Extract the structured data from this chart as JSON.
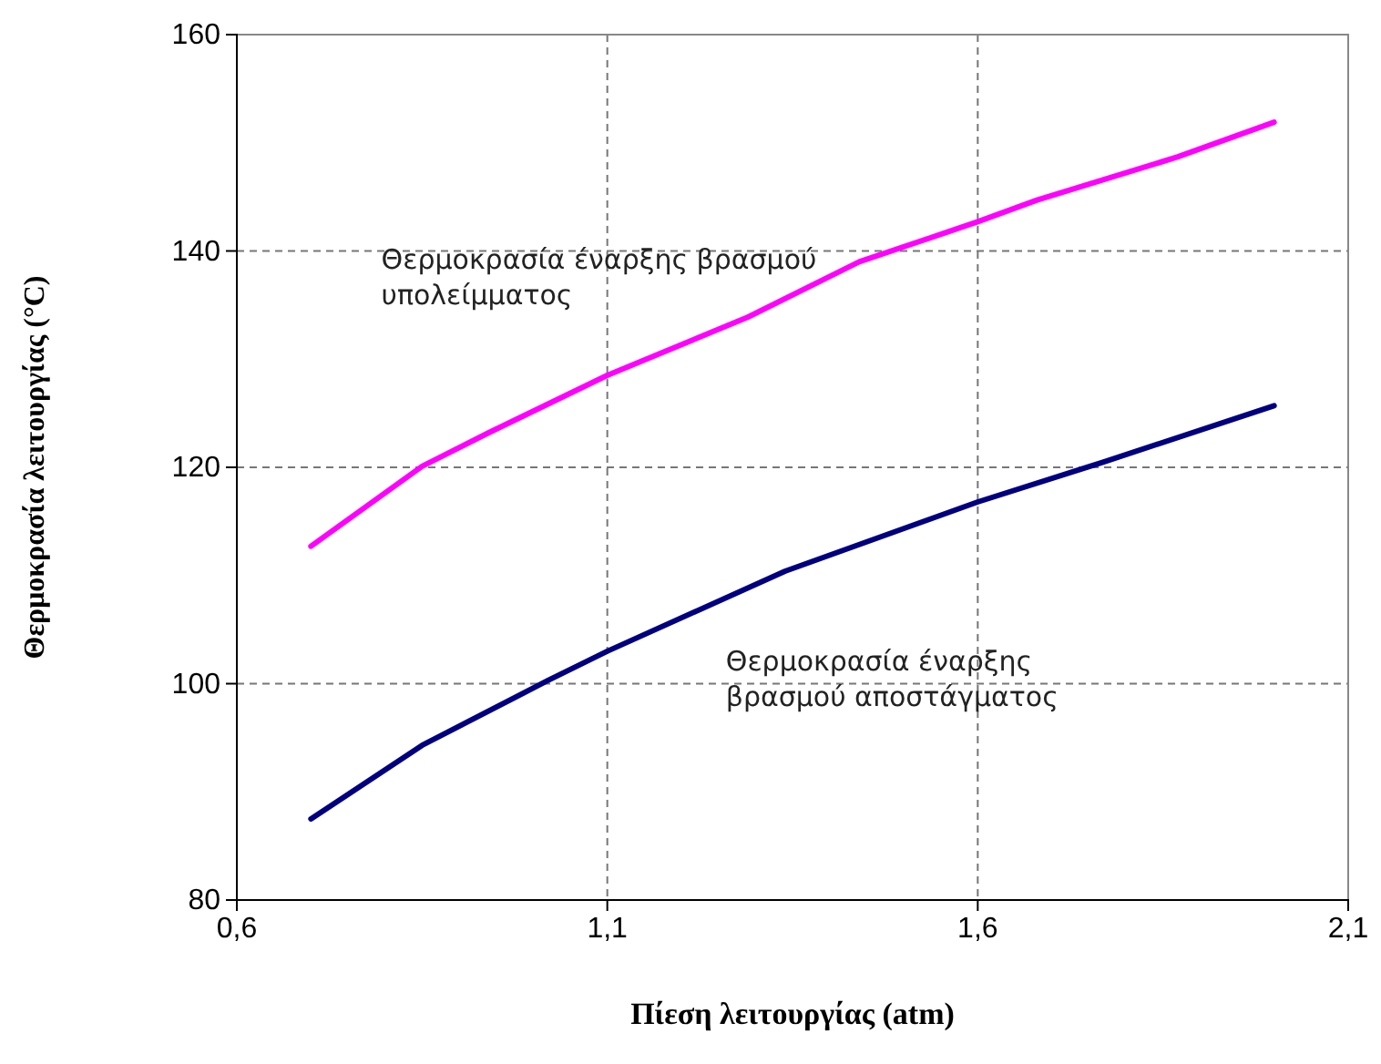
{
  "chart_data": {
    "type": "line",
    "xlabel": "Πίεση λειτουργίας (atm)",
    "ylabel": "Θερμοκρασία λειτουργίας (°C)",
    "xlim": [
      0.6,
      2.1
    ],
    "xticks": [
      {
        "value": 0.6,
        "label": "0,6"
      },
      {
        "value": 1.1,
        "label": "1,1"
      },
      {
        "value": 1.6,
        "label": "1,6"
      },
      {
        "value": 2.1,
        "label": "2,1"
      }
    ],
    "ylim": [
      80,
      160
    ],
    "yticks": [
      80,
      100,
      120,
      140,
      160
    ],
    "grid": true,
    "legend": false,
    "line_style": "solid",
    "marker": "none",
    "series": [
      {
        "name": "Θερμοκρασία έναρξης βρασμού υπολείμματος",
        "color": "#ff00ff",
        "x": [
          0.7,
          0.85,
          0.94,
          1.1,
          1.29,
          1.44,
          1.6,
          1.68,
          1.87,
          2.0
        ],
        "values": [
          112.7,
          120.1,
          123.2,
          128.5,
          133.9,
          139.0,
          142.7,
          144.7,
          148.7,
          151.9
        ]
      },
      {
        "name": "Θερμοκρασία έναρξης βρασμού αποστάγματος",
        "color": "#000080",
        "x": [
          0.7,
          0.85,
          1.02,
          1.1,
          1.34,
          1.6,
          1.77,
          2.0
        ],
        "values": [
          87.5,
          94.3,
          100.3,
          103.0,
          110.4,
          116.8,
          120.5,
          125.7
        ]
      }
    ]
  }
}
